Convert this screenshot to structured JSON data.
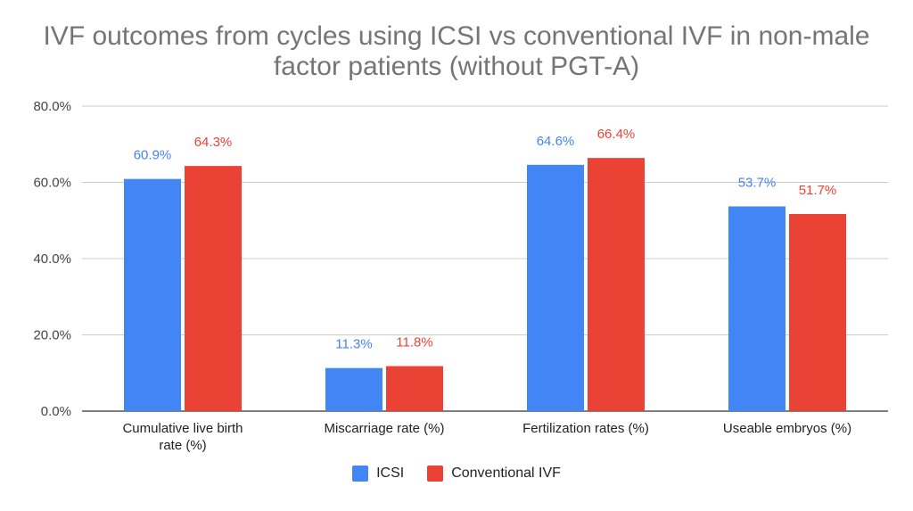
{
  "chart_data": {
    "type": "bar",
    "title_lines": [
      "IVF outcomes from cycles using ICSI vs conventional IVF in non-male",
      "factor patients (without PGT-A)"
    ],
    "categories": [
      [
        "Cumulative live birth",
        "rate (%)"
      ],
      [
        "Miscarriage rate (%)"
      ],
      [
        "Fertilization rates (%)"
      ],
      [
        "Useable embryos (%)"
      ]
    ],
    "series": [
      {
        "name": "ICSI",
        "color": "#4285F4",
        "values": [
          60.9,
          11.3,
          64.6,
          53.7
        ],
        "labels": [
          "60.9%",
          "11.3%",
          "64.6%",
          "53.7%"
        ]
      },
      {
        "name": "Conventional IVF",
        "color": "#EA4335",
        "values": [
          64.3,
          11.8,
          66.4,
          51.7
        ],
        "labels": [
          "64.3%",
          "11.8%",
          "66.4%",
          "51.7%"
        ]
      }
    ],
    "yticks": [
      0,
      20,
      40,
      60,
      80
    ],
    "ytick_labels": [
      "0.0%",
      "20.0%",
      "40.0%",
      "60.0%",
      "80.0%"
    ],
    "ylim": [
      0,
      80
    ],
    "grid": true,
    "legend_position": "bottom"
  }
}
